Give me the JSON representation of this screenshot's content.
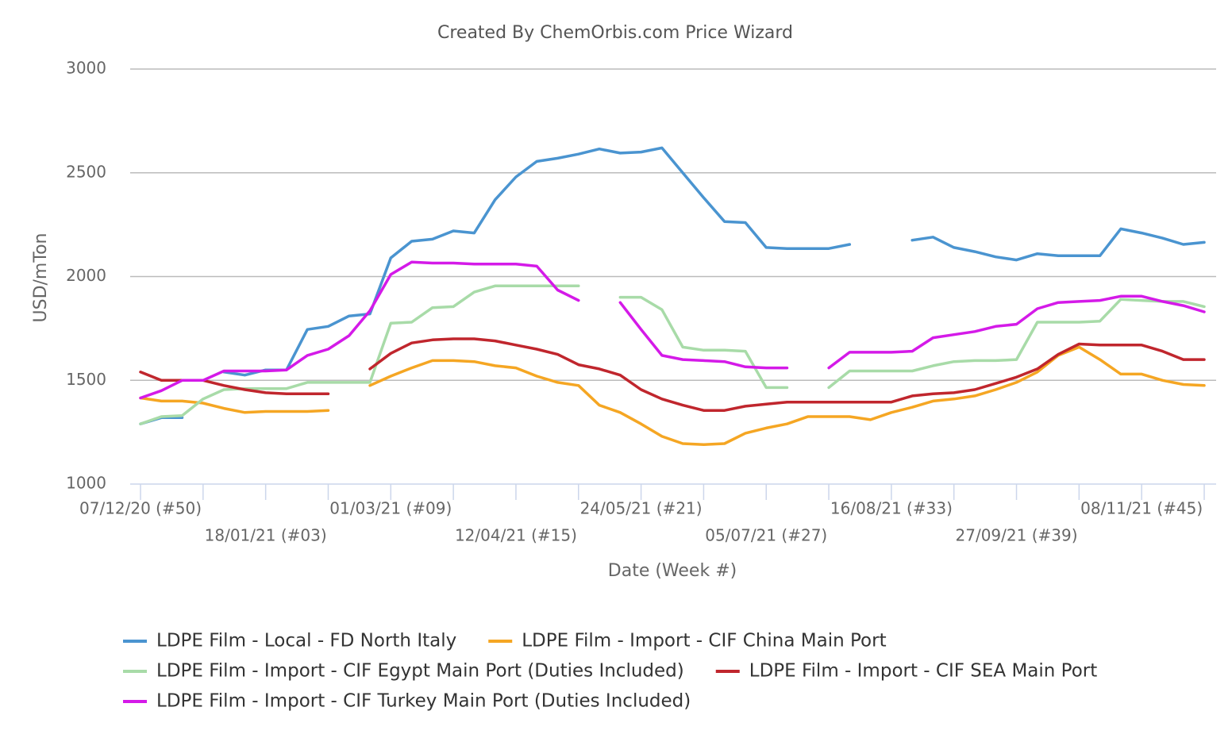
{
  "chart_data": {
    "type": "line",
    "title": "Created By ChemOrbis.com Price Wizard",
    "x_label": "Date (Week #)",
    "y_label": "USD/mTon",
    "categories": [
      "07/12/20 (#50)",
      null,
      null,
      null,
      null,
      null,
      "18/01/21 (#03)",
      null,
      null,
      null,
      null,
      null,
      "01/03/21 (#09)",
      null,
      null,
      null,
      null,
      null,
      "12/04/21 (#15)",
      null,
      null,
      null,
      null,
      null,
      "24/05/21 (#21)",
      null,
      null,
      null,
      null,
      null,
      "05/07/21 (#27)",
      null,
      null,
      null,
      null,
      null,
      "16/08/21 (#33)",
      null,
      null,
      null,
      null,
      null,
      "27/09/21 (#39)",
      null,
      null,
      null,
      null,
      null,
      "08/11/21 (#45)",
      null,
      null,
      null
    ],
    "xticks": [
      0,
      3,
      6,
      9,
      12,
      15,
      18,
      21,
      24,
      27,
      30,
      33,
      36,
      39,
      42,
      45,
      48,
      51
    ],
    "ylim": [
      1000,
      3000
    ],
    "yticks": [
      1000,
      1500,
      2000,
      2500,
      3000
    ],
    "grid": true,
    "series": [
      {
        "name": "LDPE Film - Local - FD North Italy",
        "color": "#4a94d0",
        "values": [
          1290,
          1320,
          1320,
          null,
          1540,
          1525,
          1550,
          1550,
          1745,
          1760,
          1810,
          1820,
          2090,
          2170,
          2180,
          2220,
          2210,
          2370,
          2480,
          2555,
          2570,
          2590,
          2615,
          2595,
          2600,
          2620,
          2500,
          2380,
          2265,
          2260,
          2140,
          2135,
          2135,
          2135,
          2155,
          null,
          null,
          2175,
          2190,
          2140,
          2120,
          2095,
          2080,
          2110,
          2100,
          2100,
          2100,
          2230,
          2210,
          2185,
          2155,
          2165
        ]
      },
      {
        "name": "LDPE Film - Import - CIF China Main Port",
        "color": "#f5a623",
        "values": [
          1415,
          1400,
          1400,
          1390,
          1365,
          1345,
          1350,
          1350,
          1350,
          1355,
          null,
          1475,
          1520,
          1560,
          1595,
          1595,
          1590,
          1570,
          1560,
          1520,
          1490,
          1475,
          1380,
          1345,
          1290,
          1230,
          1195,
          1190,
          1195,
          1245,
          1270,
          1290,
          1325,
          1325,
          1325,
          1310,
          1345,
          1370,
          1400,
          1410,
          1425,
          1455,
          1490,
          1540,
          1620,
          1660,
          1600,
          1530,
          1530,
          1500,
          1480,
          1475
        ]
      },
      {
        "name": "LDPE Film - Import - CIF Egypt Main Port (Duties Included)",
        "color": "#a8dba8",
        "values": [
          1290,
          1325,
          1330,
          1410,
          1455,
          1460,
          1460,
          1460,
          1490,
          1490,
          1490,
          1490,
          1775,
          1780,
          1850,
          1855,
          1925,
          1955,
          1955,
          1955,
          1955,
          1955,
          null,
          1900,
          1900,
          1840,
          1660,
          1645,
          1645,
          1640,
          1465,
          1465,
          null,
          1465,
          1545,
          1545,
          1545,
          1545,
          1570,
          1590,
          1595,
          1595,
          1600,
          1780,
          1780,
          1780,
          1785,
          1890,
          1885,
          1880,
          1880,
          1855
        ]
      },
      {
        "name": "LDPE Film - Import - CIF SEA Main Port",
        "color": "#c0262d",
        "values": [
          1540,
          1500,
          1500,
          1500,
          1475,
          1455,
          1440,
          1435,
          1435,
          1435,
          null,
          1555,
          1630,
          1680,
          1695,
          1700,
          1700,
          1690,
          1670,
          1650,
          1625,
          1575,
          1555,
          1525,
          1455,
          1410,
          1380,
          1355,
          1355,
          1375,
          1385,
          1395,
          1395,
          1395,
          1395,
          1395,
          1395,
          1425,
          1435,
          1440,
          1455,
          1485,
          1515,
          1555,
          1625,
          1675,
          1670,
          1670,
          1670,
          1640,
          1600,
          1600
        ]
      },
      {
        "name": "LDPE Film - Import - CIF Turkey Main Port (Duties Included)",
        "color": "#d41ae8",
        "values": [
          1415,
          1450,
          1500,
          1500,
          1545,
          1545,
          1545,
          1550,
          1620,
          1650,
          1715,
          1835,
          2010,
          2070,
          2065,
          2065,
          2060,
          2060,
          2060,
          2050,
          1935,
          1885,
          null,
          1875,
          1745,
          1620,
          1600,
          1595,
          1590,
          1565,
          1560,
          1560,
          null,
          1560,
          1635,
          1635,
          1635,
          1640,
          1705,
          1720,
          1735,
          1760,
          1770,
          1845,
          1875,
          1880,
          1885,
          1905,
          1905,
          1880,
          1860,
          1830
        ]
      }
    ]
  }
}
